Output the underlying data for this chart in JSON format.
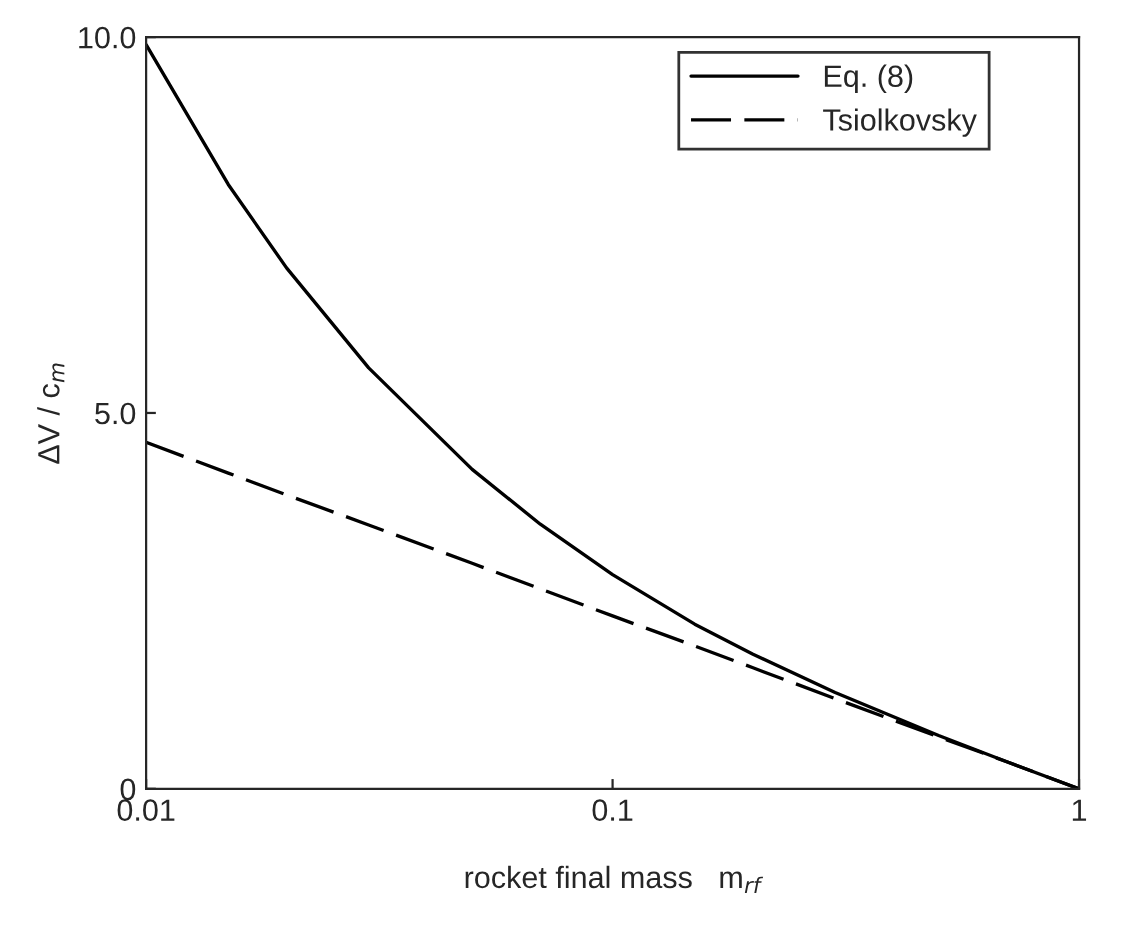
{
  "chart_data": {
    "type": "line",
    "xlabel": "rocket final mass   m$_{rf}$",
    "ylabel": "ΔV / c$_{m}$",
    "log": "x",
    "x": [
      0.01,
      0.015,
      0.02,
      0.03,
      0.05,
      0.07,
      0.1,
      0.15,
      0.2,
      0.3,
      0.5,
      0.7,
      1
    ],
    "series": [
      {
        "name": "Eq. (8)",
        "color": "#000000",
        "line_style": "solid",
        "values": [
          9.9,
          8.04,
          6.93,
          5.6,
          4.25,
          3.52,
          2.85,
          2.19,
          1.79,
          1.28,
          0.71,
          0.36,
          0
        ]
      },
      {
        "name": "Tsiolkovsky",
        "color": "#000000",
        "line_style": "dashed",
        "values": [
          4.61,
          4.2,
          3.91,
          3.51,
          3.0,
          2.66,
          2.3,
          1.9,
          1.61,
          1.2,
          0.69,
          0.36,
          0
        ]
      }
    ],
    "xlim": [
      0.01,
      1
    ],
    "xticks": [
      0.01,
      0.1,
      1
    ],
    "ylim": [
      0,
      10
    ],
    "yticks": [
      {
        "value": 0,
        "label": "0"
      },
      {
        "value": 5,
        "label": "5.0"
      },
      {
        "value": 10,
        "label": "10.0"
      }
    ],
    "grid": false,
    "legend": "top right",
    "marker": "none"
  }
}
